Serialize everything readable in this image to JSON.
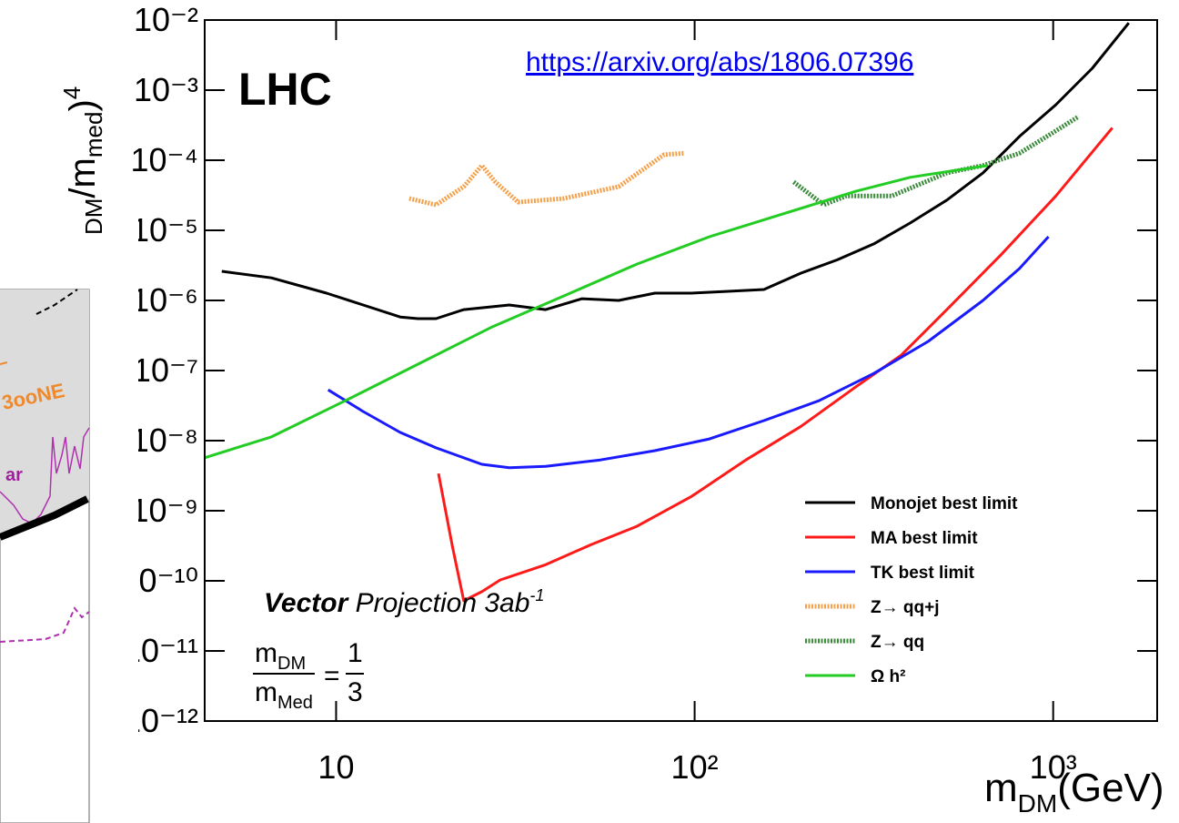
{
  "chart_data": {
    "type": "line",
    "log_x": true,
    "log_y": true,
    "xlim": [
      4.3,
      1950
    ],
    "ylim": [
      1e-12,
      0.01
    ],
    "xticks": [
      10,
      {
        "value": 100,
        "label": "10²"
      },
      {
        "value": 1000,
        "label": "10³"
      }
    ],
    "yticks": [
      {
        "value": 0.01,
        "label": "10⁻²"
      },
      {
        "value": 0.001,
        "label": "10⁻³"
      },
      {
        "value": 0.0001,
        "label": "10⁻⁴"
      },
      {
        "value": 1e-05,
        "label": "10⁻⁵"
      },
      {
        "value": 1e-06,
        "label": "10⁻⁶"
      },
      {
        "value": 1e-07,
        "label": "10⁻⁷"
      },
      {
        "value": 1e-08,
        "label": "10⁻⁸"
      },
      {
        "value": 1e-09,
        "label": "10⁻⁹"
      },
      {
        "value": 1e-10,
        "label": "10⁻¹⁰"
      },
      {
        "value": 1e-11,
        "label": "10⁻¹¹"
      },
      {
        "value": 1e-12,
        "label": "10⁻¹²"
      }
    ],
    "x_label": [
      "m",
      "DM",
      "(GeV)"
    ],
    "y_label": [
      "DM",
      "/m",
      "med",
      ")",
      "4"
    ],
    "legend": "lower right",
    "series": [
      {
        "name": "Monojet best limit",
        "color": "#000000",
        "style": "solid",
        "x": [
          4.8,
          6.6,
          9.4,
          11.9,
          15.1,
          16.9,
          19,
          22.7,
          30.4,
          38.4,
          48.5,
          61.4,
          77.5,
          98,
          124,
          156,
          198,
          250,
          316,
          399,
          505,
          637,
          805,
          1018,
          1286,
          1625
        ],
        "values": [
          2.6e-06,
          2.1e-06,
          1.27e-06,
          8.6e-07,
          5.8e-07,
          5.5e-07,
          5.5e-07,
          7.4e-07,
          8.6e-07,
          7.4e-07,
          1.06e-06,
          1e-06,
          1.27e-06,
          1.27e-06,
          1.35e-06,
          1.43e-06,
          2.45e-06,
          3.8e-06,
          6.4e-06,
          1.27e-05,
          2.7e-05,
          6.6e-05,
          0.000218,
          0.00062,
          0.00205,
          0.0091
        ]
      },
      {
        "name": "MA best limit",
        "color": "#ff1a1a",
        "style": "solid",
        "x": [
          19.3,
          21.1,
          22.7,
          25.5,
          28.7,
          38.4,
          51.5,
          69,
          98,
          139,
          198,
          281,
          377,
          505,
          716,
          1018,
          1462
        ],
        "values": [
          3.4e-09,
          3.1e-10,
          5.2e-11,
          7e-11,
          1.03e-10,
          1.7e-10,
          3.3e-10,
          6e-10,
          1.6e-09,
          5.3e-09,
          1.6e-08,
          5.8e-08,
          1.66e-07,
          7.4e-07,
          4.5e-06,
          3.1e-05,
          0.00029
        ]
      },
      {
        "name": "TK best limit",
        "color": "#1a1aff",
        "style": "solid",
        "x": [
          9.5,
          11.9,
          15.1,
          19,
          25.5,
          30.4,
          38.4,
          54.6,
          77.5,
          110,
          156,
          222,
          316,
          448,
          637,
          805,
          970
        ],
        "values": [
          5.3e-08,
          2.6e-08,
          1.31e-08,
          7.9e-09,
          4.6e-09,
          4.1e-09,
          4.3e-09,
          5.3e-09,
          7.2e-09,
          1.06e-08,
          1.93e-08,
          3.7e-08,
          9.1e-08,
          2.6e-07,
          1e-06,
          2.85e-06,
          8.1e-06
        ]
      },
      {
        "name": "Z→ qq+j",
        "color": "#f5a04a",
        "style": "dotted",
        "x": [
          16,
          19,
          22.7,
          25.5,
          27.8,
          32.2,
          43.2,
          61.4,
          82.2,
          93.5
        ],
        "values": [
          2.85e-05,
          2.31e-05,
          4.2e-05,
          8.4e-05,
          4.9e-05,
          2.53e-05,
          2.85e-05,
          4.2e-05,
          0.00012,
          0.000126
        ]
      },
      {
        "name": "Z→ qq",
        "color": "#3c8a3c",
        "style": "dotted",
        "x": [
          189,
          229,
          265,
          355,
          505,
          637,
          805,
          960,
          1178
        ],
        "values": [
          4.9e-05,
          2.31e-05,
          3.1e-05,
          3.1e-05,
          6.6e-05,
          8.4e-05,
          0.000126,
          0.000218,
          0.00042
        ]
      },
      {
        "name": "Ω h²",
        "color": "#22cc22",
        "style": "solid",
        "x": [
          4.3,
          6.6,
          10.6,
          16.9,
          27,
          43.2,
          69,
          110,
          176,
          281,
          399,
          656
        ],
        "values": [
          5.7e-09,
          1.13e-08,
          3.7e-08,
          1.23e-07,
          4.1e-07,
          1.16e-06,
          3.3e-06,
          8.1e-06,
          1.71e-05,
          3.6e-05,
          5.7e-05,
          8.4e-05
        ]
      }
    ],
    "annotations": {
      "experiment": "LHC",
      "url": "https://arxiv.org/abs/1806.07396",
      "projection": [
        "Vector",
        " Projection 3ab",
        "-1"
      ],
      "ratio": {
        "numerator": [
          "m",
          "DM"
        ],
        "denominator": [
          "m",
          "Med"
        ],
        "equals": "=",
        "value_numerator": "1",
        "value_denominator": "3"
      }
    }
  },
  "left_fragment": {
    "labels": [
      "3ooNE",
      "ar"
    ]
  }
}
